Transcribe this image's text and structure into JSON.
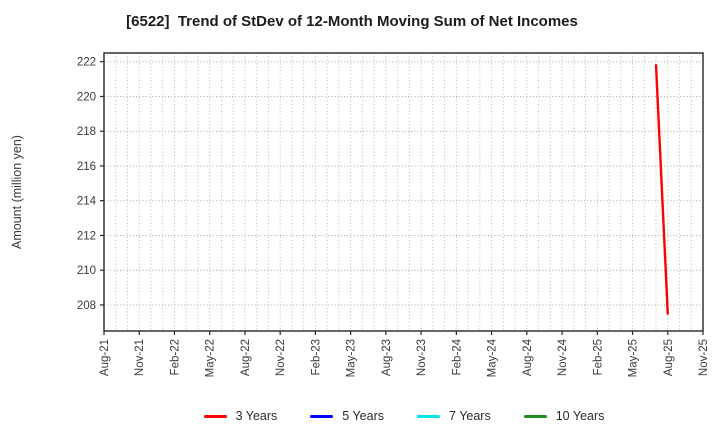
{
  "page": {
    "background": "#ffffff"
  },
  "chart_data": {
    "type": "line",
    "title": "[6522]  Trend of StDev of 12-Month Moving Sum of Net Incomes",
    "ylabel": "Amount (million yen)",
    "xlabel": "",
    "x_tick_labels": [
      "Aug-21",
      "Nov-21",
      "Feb-22",
      "May-22",
      "Aug-22",
      "Nov-22",
      "Feb-23",
      "May-23",
      "Aug-23",
      "Nov-23",
      "Feb-24",
      "May-24",
      "Aug-24",
      "Nov-24",
      "Feb-25",
      "May-25",
      "Aug-25",
      "Nov-25"
    ],
    "x_minor_grid": "monthly",
    "y_ticks": [
      208,
      210,
      212,
      214,
      216,
      218,
      220,
      222
    ],
    "ylim": [
      206.5,
      222.5
    ],
    "grid": {
      "style": "dotted",
      "color": "#b8b8b8",
      "on": true
    },
    "axis_color": "#262626",
    "tick_label_color": "#3a3a3a",
    "legend_position": "bottom-center",
    "series": [
      {
        "name": "3 Years",
        "color": "#ff0000",
        "points": [
          {
            "x": "Jul-25",
            "y": 221.8
          },
          {
            "x": "Aug-25",
            "y": 207.5
          }
        ]
      },
      {
        "name": "5 Years",
        "color": "#0000ff",
        "points": []
      },
      {
        "name": "7 Years",
        "color": "#00e5ee",
        "points": []
      },
      {
        "name": "10 Years",
        "color": "#228b22",
        "points": []
      }
    ]
  }
}
